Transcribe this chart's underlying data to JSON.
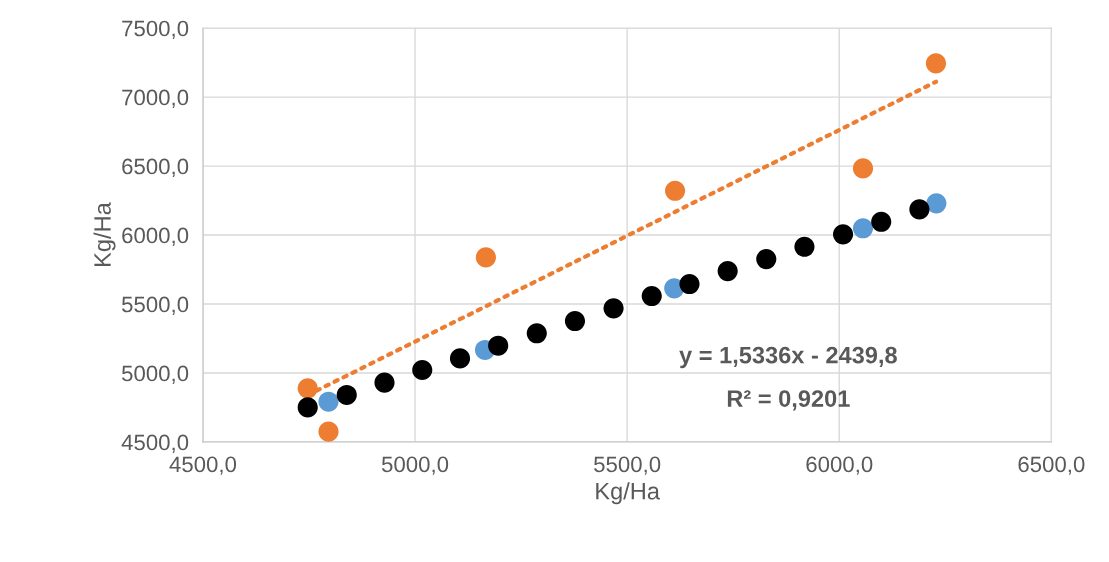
{
  "chart_data": {
    "type": "scatter",
    "xlabel": "Kg/Ha",
    "ylabel": "Kg/Ha",
    "xlim": [
      4500,
      6500
    ],
    "ylim": [
      4500,
      7500
    ],
    "xticks": [
      {
        "value": 4500,
        "label": "4500,0"
      },
      {
        "value": 5000,
        "label": "5000,0"
      },
      {
        "value": 5500,
        "label": "5500,0"
      },
      {
        "value": 6000,
        "label": "6000,0"
      },
      {
        "value": 6500,
        "label": "6500,0"
      }
    ],
    "yticks": [
      {
        "value": 4500,
        "label": "4500,0"
      },
      {
        "value": 5000,
        "label": "5000,0"
      },
      {
        "value": 5500,
        "label": "5500,0"
      },
      {
        "value": 6000,
        "label": "6000,0"
      },
      {
        "value": 6500,
        "label": "6500,0"
      },
      {
        "value": 7000,
        "label": "7000,0"
      },
      {
        "value": 7500,
        "label": "7500,0"
      }
    ],
    "grid": true,
    "marker": "circle",
    "series": [
      {
        "type": "line",
        "color": "#ed7d31",
        "line_style": "dotted",
        "marker": "none",
        "x": [
          4747,
          6228
        ],
        "values": [
          4840,
          7111
        ]
      },
      {
        "color": "#ed7d31",
        "x": [
          4747,
          4796,
          5167,
          5613,
          6056,
          6228
        ],
        "values": [
          4889,
          4575,
          5838,
          6321,
          6483,
          7244
        ]
      },
      {
        "color": "#5b9bd5",
        "x": [
          4796,
          5165,
          5611,
          6056,
          6229
        ],
        "values": [
          4792,
          5167,
          5614,
          6049,
          6230
        ]
      },
      {
        "color": "#000000",
        "x": [
          4747,
          4839,
          4928,
          5017,
          5106,
          5196,
          5287,
          5377,
          5468,
          5558,
          5647,
          5737,
          5828,
          5918,
          6009,
          6099,
          6189
        ],
        "values": [
          4751,
          4841,
          4930,
          5022,
          5106,
          5198,
          5288,
          5377,
          5469,
          5558,
          5645,
          5739,
          5826,
          5915,
          6005,
          6096,
          6186
        ]
      }
    ],
    "annotations": [
      "y = 1,5336x - 2439,8",
      "R² = 0,9201"
    ]
  }
}
